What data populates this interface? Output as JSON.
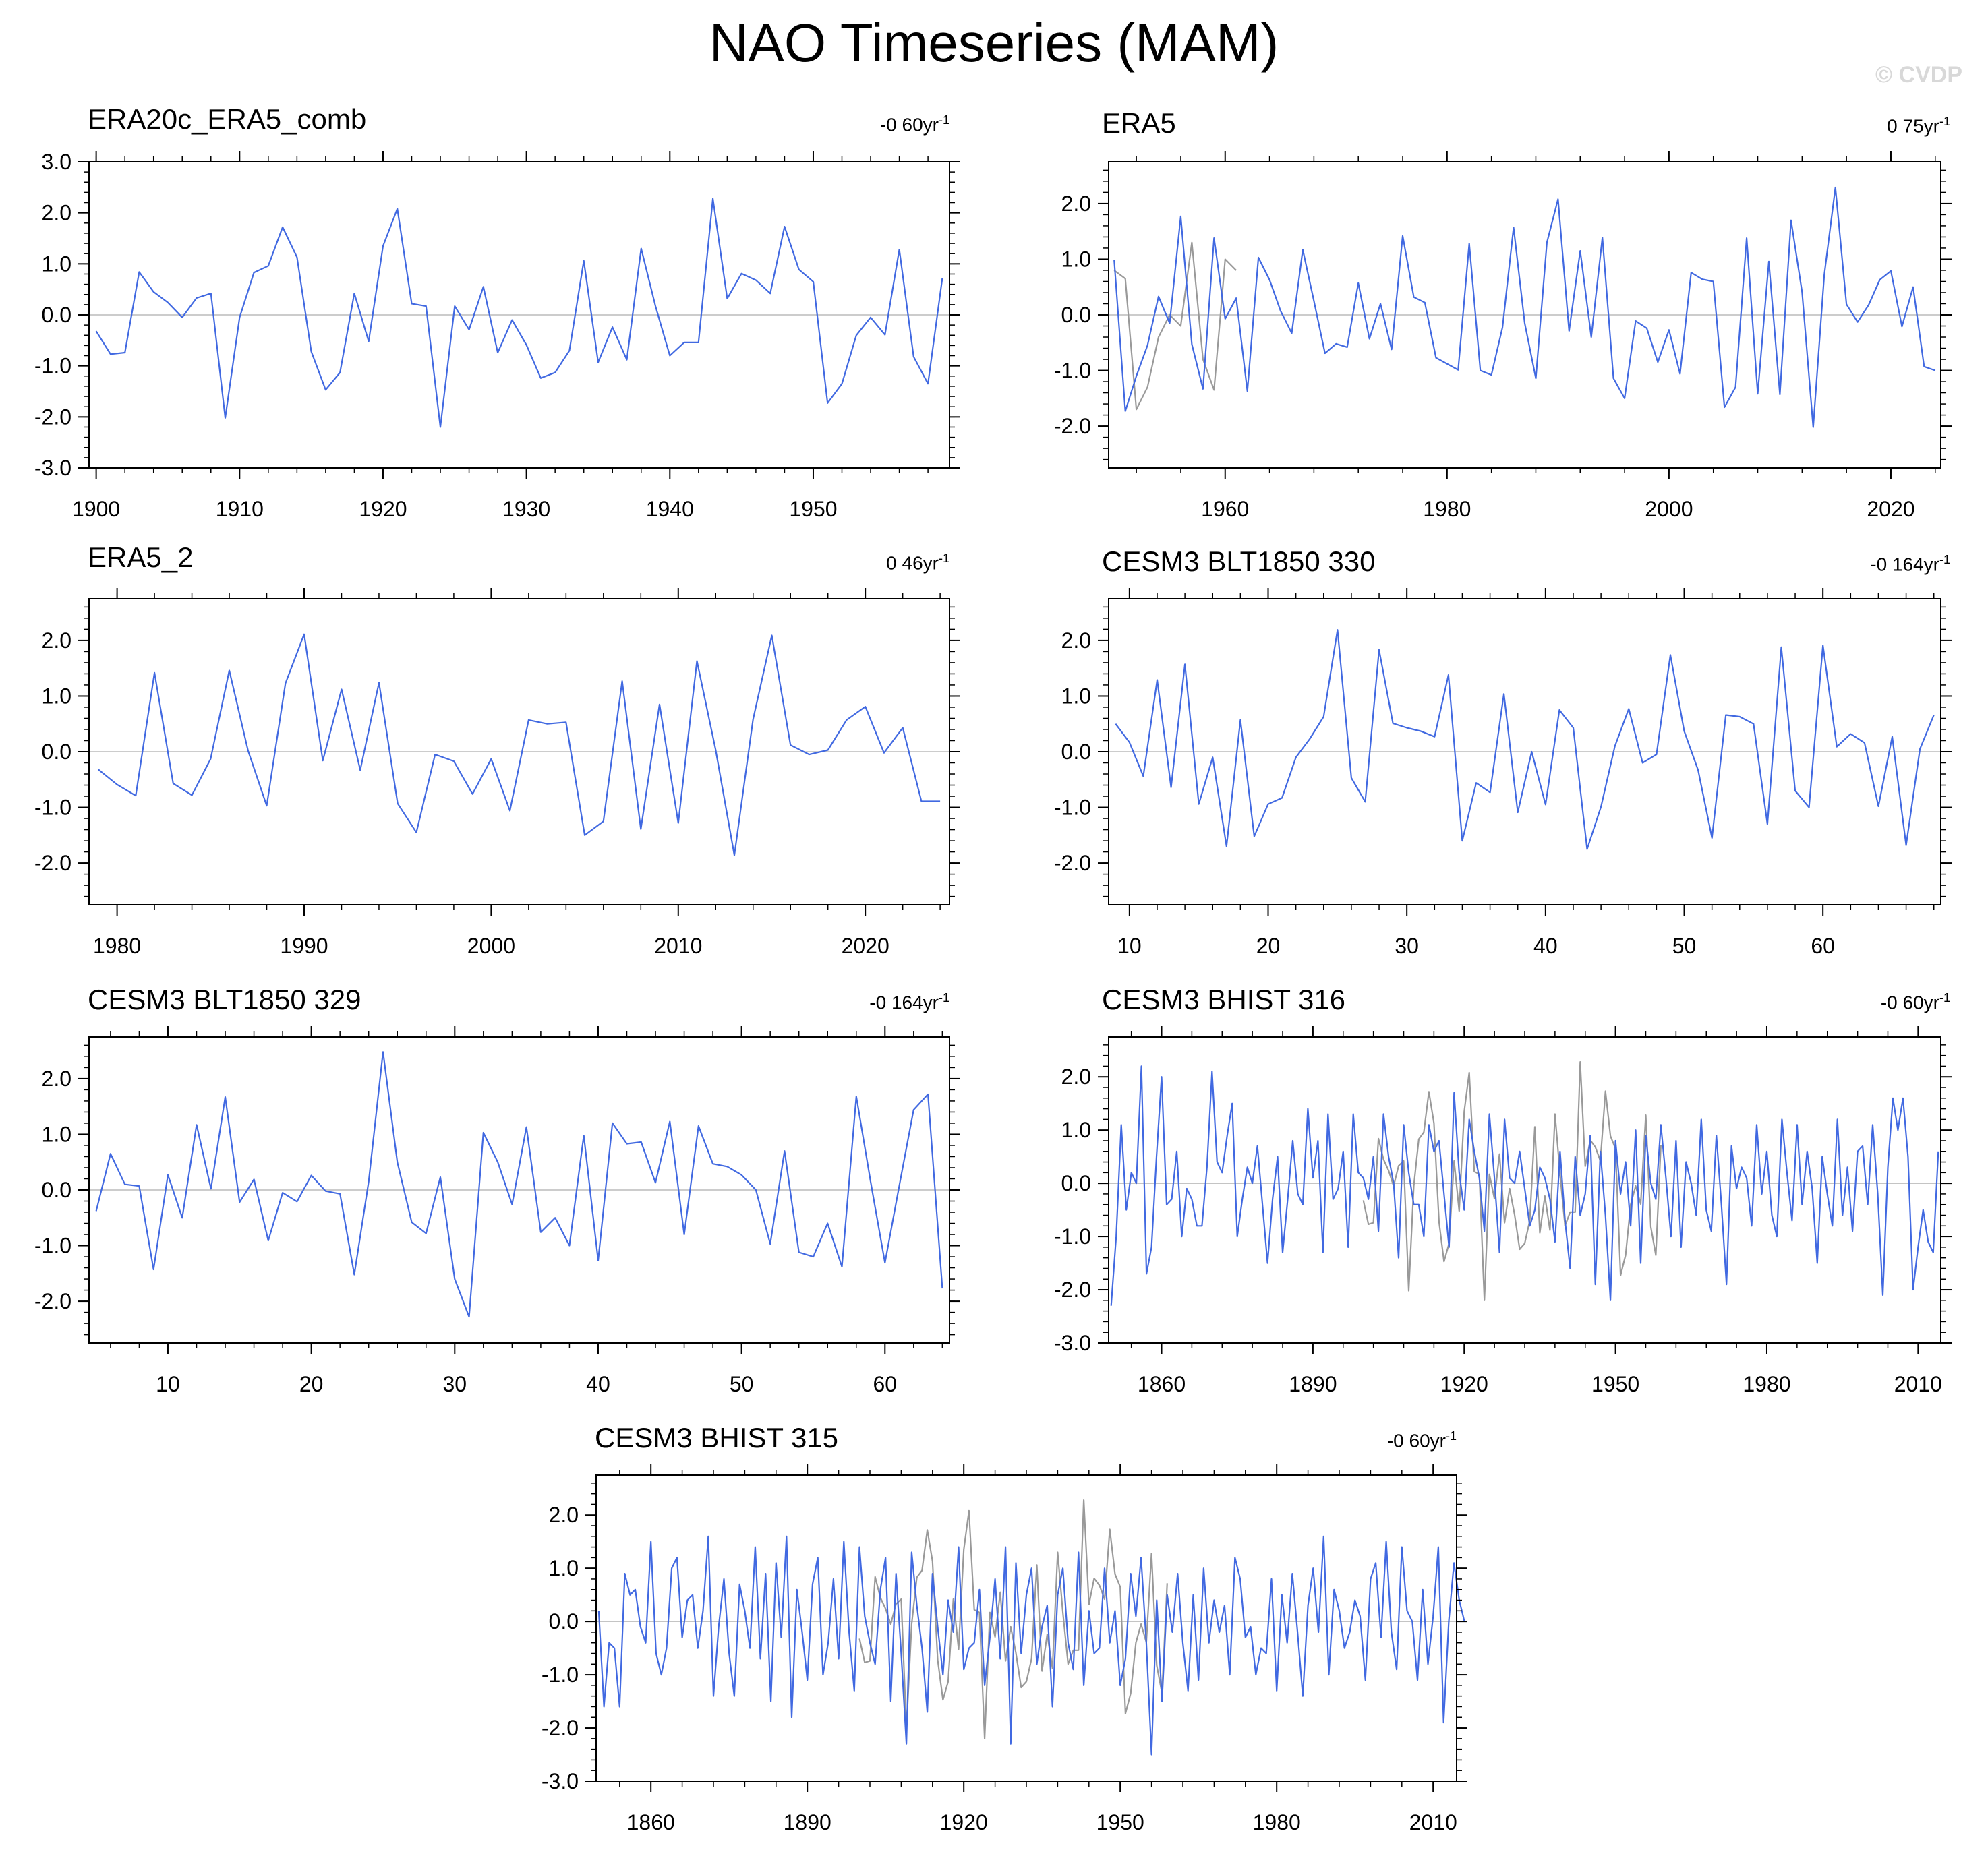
{
  "title": "NAO Timeseries (MAM)",
  "watermark": "© CVDP",
  "colors": {
    "series": "#4169e1",
    "obs": "#999999",
    "axis": "#000000",
    "zero": "#bbbbbb"
  },
  "chart_data": [
    {
      "type": "line",
      "title": "ERA20c_ERA5_comb",
      "trend_value": "-0 60yr",
      "trend_exp": "-1",
      "xlim": [
        1899.5,
        1959.5
      ],
      "ylim": [
        -3,
        3
      ],
      "yticks": [
        -3,
        -2,
        -1,
        0,
        1,
        2,
        3
      ],
      "ytick_labels": [
        "-3.0",
        "-2.0",
        "-1.0",
        "0.0",
        "1.0",
        "2.0",
        "3.0"
      ],
      "xticks": [
        1900,
        1910,
        1920,
        1930,
        1940,
        1950
      ],
      "xtick_labels": [
        "1900",
        "1910",
        "1920",
        "1930",
        "1940",
        "1950"
      ],
      "series": [
        {
          "x_start": 1900,
          "values": [
            -0.32,
            -0.77,
            -0.74,
            0.84,
            0.45,
            0.24,
            -0.05,
            0.33,
            0.42,
            -2.02,
            -0.05,
            0.83,
            0.96,
            1.72,
            1.13,
            -0.72,
            -1.47,
            -1.13,
            0.42,
            -0.52,
            1.35,
            2.08,
            0.22,
            0.17,
            -2.2,
            0.17,
            -0.29,
            0.55,
            -0.74,
            -0.1,
            -0.59,
            -1.24,
            -1.13,
            -0.7,
            1.06,
            -0.93,
            -0.24,
            -0.88,
            1.3,
            0.17,
            -0.8,
            -0.54,
            -0.54,
            2.28,
            0.32,
            0.81,
            0.68,
            0.42,
            1.73,
            0.89,
            0.65,
            -1.73,
            -1.35,
            -0.4,
            -0.05,
            -0.39,
            1.28,
            -0.82,
            -1.35,
            0.72
          ]
        }
      ]
    },
    {
      "type": "line",
      "title": "ERA5",
      "trend_value": "0 75yr",
      "trend_exp": "-1",
      "xlim": [
        1949.5,
        2024.5
      ],
      "ylim": [
        -2.75,
        2.75
      ],
      "yticks": [
        -2,
        -1,
        0,
        1,
        2
      ],
      "ytick_labels": [
        "-2.0",
        "-1.0",
        "0.0",
        "1.0",
        "2.0"
      ],
      "xticks": [
        1960,
        1980,
        2000,
        2020
      ],
      "xtick_labels": [
        "1960",
        "1980",
        "2000",
        "2020"
      ],
      "series": [
        {
          "name": "obs",
          "x_start": 1950,
          "values": [
            0.8,
            0.65,
            -1.7,
            -1.3,
            -0.4,
            0.0,
            -0.2,
            1.3,
            -0.8,
            -1.35,
            1.0,
            0.8
          ]
        },
        {
          "x_start": 1950,
          "values": [
            0.99,
            -1.73,
            -1.1,
            -0.55,
            0.33,
            -0.15,
            1.77,
            -0.53,
            -1.33,
            1.38,
            -0.07,
            0.3,
            -1.37,
            1.03,
            0.63,
            0.07,
            -0.33,
            1.17,
            0.25,
            -0.69,
            -0.52,
            -0.58,
            0.57,
            -0.43,
            0.2,
            -0.62,
            1.42,
            0.32,
            0.22,
            -0.77,
            -0.88,
            -0.99,
            1.28,
            -1.0,
            -1.08,
            -0.22,
            1.57,
            -0.15,
            -1.14,
            1.3,
            2.08,
            -0.29,
            1.15,
            -0.4,
            1.39,
            -1.14,
            -1.5,
            -0.11,
            -0.24,
            -0.85,
            -0.27,
            -1.06,
            0.76,
            0.64,
            0.6,
            -1.66,
            -1.3,
            1.38,
            -1.42,
            0.96,
            -1.43,
            1.7,
            0.41,
            -2.02,
            0.72,
            2.29,
            0.19,
            -0.13,
            0.18,
            0.63,
            0.79,
            -0.21,
            0.5,
            -0.93,
            -1.0
          ]
        }
      ]
    },
    {
      "type": "line",
      "title": "ERA5_2",
      "trend_value": "0 46yr",
      "trend_exp": "-1",
      "xlim": [
        1978.5,
        2024.5
      ],
      "ylim": [
        -2.75,
        2.75
      ],
      "yticks": [
        -2,
        -1,
        0,
        1,
        2
      ],
      "ytick_labels": [
        "-2.0",
        "-1.0",
        "0.0",
        "1.0",
        "2.0"
      ],
      "xticks": [
        1980,
        1990,
        2000,
        2010,
        2020
      ],
      "xtick_labels": [
        "1980",
        "1990",
        "2000",
        "2010",
        "2020"
      ],
      "series": [
        {
          "x_start": 1979,
          "values": [
            -0.32,
            -0.59,
            -0.79,
            1.42,
            -0.57,
            -0.78,
            -0.13,
            1.46,
            0.02,
            -0.97,
            1.23,
            2.11,
            -0.16,
            1.12,
            -0.33,
            1.24,
            -0.93,
            -1.45,
            -0.05,
            -0.17,
            -0.76,
            -0.13,
            -1.06,
            0.57,
            0.5,
            0.53,
            -1.5,
            -1.25,
            1.27,
            -1.39,
            0.85,
            -1.28,
            1.63,
            0.03,
            -1.86,
            0.58,
            2.09,
            0.12,
            -0.05,
            0.03,
            0.57,
            0.81,
            -0.02,
            0.43,
            -0.89,
            -0.89
          ]
        }
      ]
    },
    {
      "type": "line",
      "title": "CESM3 BLT1850 330",
      "trend_value": "-0 164yr",
      "trend_exp": "-1",
      "xlim": [
        8.5,
        68.5
      ],
      "ylim": [
        -2.75,
        2.75
      ],
      "yticks": [
        -2,
        -1,
        0,
        1,
        2
      ],
      "ytick_labels": [
        "-2.0",
        "-1.0",
        "0.0",
        "1.0",
        "2.0"
      ],
      "xticks": [
        10,
        20,
        30,
        40,
        50,
        60
      ],
      "xtick_labels": [
        "10",
        "20",
        "30",
        "40",
        "50",
        "60"
      ],
      "series": [
        {
          "x_start": 9,
          "values": [
            0.5,
            0.17,
            -0.44,
            1.29,
            -0.64,
            1.57,
            -0.94,
            -0.1,
            -1.7,
            0.57,
            -1.52,
            -0.94,
            -0.83,
            -0.1,
            0.23,
            0.63,
            2.19,
            -0.47,
            -0.9,
            1.83,
            0.51,
            0.43,
            0.37,
            0.27,
            1.38,
            -1.6,
            -0.56,
            -0.73,
            1.04,
            -1.09,
            0.0,
            -0.95,
            0.75,
            0.43,
            -1.75,
            -0.99,
            0.1,
            0.77,
            -0.2,
            -0.05,
            1.74,
            0.37,
            -0.33,
            -1.55,
            0.66,
            0.63,
            0.5,
            -1.3,
            1.88,
            -0.7,
            -1.0,
            1.91,
            0.09,
            0.32,
            0.16,
            -0.98,
            0.27,
            -1.68,
            0.05,
            0.66
          ]
        }
      ]
    },
    {
      "type": "line",
      "title": "CESM3 BLT1850 329",
      "trend_value": "-0 164yr",
      "trend_exp": "-1",
      "xlim": [
        4.5,
        64.5
      ],
      "ylim": [
        -2.75,
        2.75
      ],
      "yticks": [
        -2,
        -1,
        0,
        1,
        2
      ],
      "ytick_labels": [
        "-2.0",
        "-1.0",
        "0.0",
        "1.0",
        "2.0"
      ],
      "xticks": [
        10,
        20,
        30,
        40,
        50,
        60
      ],
      "xtick_labels": [
        "10",
        "20",
        "30",
        "40",
        "50",
        "60"
      ],
      "series": [
        {
          "x_start": 5,
          "values": [
            -0.38,
            0.65,
            0.1,
            0.07,
            -1.43,
            0.27,
            -0.5,
            1.17,
            0.02,
            1.67,
            -0.22,
            0.19,
            -0.91,
            -0.05,
            -0.21,
            0.26,
            -0.02,
            -0.07,
            -1.52,
            0.15,
            2.48,
            0.5,
            -0.58,
            -0.78,
            0.23,
            -1.6,
            -2.28,
            1.03,
            0.5,
            -0.26,
            1.13,
            -0.76,
            -0.5,
            -1.0,
            0.98,
            -1.27,
            1.2,
            0.83,
            0.86,
            0.13,
            1.23,
            -0.8,
            1.15,
            0.47,
            0.42,
            0.27,
            0.0,
            -0.97,
            0.7,
            -1.12,
            -1.2,
            -0.6,
            -1.38,
            1.68,
            0.15,
            -1.31,
            0.08,
            1.44,
            1.72,
            -1.77
          ]
        }
      ]
    },
    {
      "type": "line",
      "title": "CESM3 BHIST 316",
      "trend_value": "-0 60yr",
      "trend_exp": "-1",
      "xlim": [
        1849.5,
        2014.5
      ],
      "ylim": [
        -3,
        2.75
      ],
      "yticks": [
        -3,
        -2,
        -1,
        0,
        1,
        2
      ],
      "ytick_labels": [
        "-3.0",
        "-2.0",
        "-1.0",
        "0.0",
        "1.0",
        "2.0"
      ],
      "xticks": [
        1860,
        1890,
        1920,
        1950,
        1980,
        2010
      ],
      "xtick_labels": [
        "1860",
        "1890",
        "1920",
        "1950",
        "1980",
        "2010"
      ],
      "series": [
        {
          "name": "obs",
          "x_start": 1900,
          "values": [
            -0.32,
            -0.77,
            -0.74,
            0.84,
            0.45,
            0.24,
            -0.05,
            0.33,
            0.42,
            -2.02,
            -0.05,
            0.83,
            0.96,
            1.72,
            1.13,
            -0.72,
            -1.47,
            -1.13,
            0.42,
            -0.52,
            1.35,
            2.08,
            0.22,
            0.17,
            -2.2,
            0.17,
            -0.29,
            0.55,
            -0.74,
            -0.1,
            -0.59,
            -1.24,
            -1.13,
            -0.7,
            1.06,
            -0.93,
            -0.24,
            -0.88,
            1.3,
            0.17,
            -0.8,
            -0.54,
            -0.54,
            2.28,
            0.32,
            0.81,
            0.68,
            0.42,
            1.73,
            0.89,
            0.65,
            -1.73,
            -1.35,
            -0.4,
            -0.05,
            -0.39,
            1.28,
            -0.82,
            -1.35,
            0.72
          ]
        },
        {
          "x_start": 1850,
          "values": [
            -2.3,
            -1.0,
            1.1,
            -0.5,
            0.2,
            0.0,
            2.2,
            -1.7,
            -1.2,
            0.5,
            2.0,
            -0.4,
            -0.3,
            0.6,
            -1.0,
            -0.1,
            -0.3,
            -0.8,
            -0.8,
            0.3,
            2.1,
            0.4,
            0.2,
            0.9,
            1.5,
            -1.0,
            -0.3,
            0.3,
            0.0,
            0.7,
            -0.4,
            -1.5,
            -0.3,
            0.5,
            -1.3,
            -0.3,
            0.8,
            -0.2,
            -0.4,
            1.4,
            0.1,
            0.8,
            -1.3,
            1.3,
            -0.3,
            -0.1,
            0.6,
            -1.2,
            1.3,
            0.2,
            0.1,
            -0.3,
            0.5,
            -0.9,
            1.3,
            0.5,
            0.0,
            -1.4,
            1.1,
            0.2,
            -0.4,
            -0.4,
            -1.0,
            1.1,
            0.6,
            0.8,
            -0.2,
            -1.2,
            1.7,
            0.2,
            -0.5,
            1.2,
            0.6,
            0.1,
            -0.9,
            1.3,
            0.1,
            -1.3,
            1.2,
            0.1,
            0.0,
            0.6,
            -0.1,
            -0.8,
            -0.5,
            0.3,
            0.1,
            -0.3,
            -1.1,
            0.6,
            -0.7,
            -1.6,
            0.5,
            -0.6,
            -0.2,
            0.9,
            -1.9,
            0.6,
            -0.6,
            -2.2,
            0.8,
            -0.2,
            0.4,
            -0.8,
            1.0,
            -1.5,
            0.9,
            0.0,
            -0.3,
            1.1,
            0.1,
            -1.0,
            0.8,
            -1.2,
            0.4,
            0.0,
            -0.6,
            1.2,
            -0.5,
            -0.9,
            0.9,
            -0.4,
            -1.9,
            0.7,
            -0.1,
            0.3,
            0.1,
            -0.8,
            1.1,
            -0.2,
            0.6,
            -0.6,
            -1.0,
            1.2,
            0.2,
            -0.7,
            1.1,
            -0.4,
            0.6,
            -0.1,
            -1.5,
            0.5,
            -0.2,
            -0.8,
            1.2,
            -0.6,
            0.3,
            -0.9,
            0.6,
            0.7,
            -0.4,
            1.1,
            -0.2,
            -2.1,
            0.3,
            1.6,
            1.0,
            1.6,
            0.5,
            -2.0,
            -1.2,
            -0.5,
            -1.1,
            -1.3,
            0.6
          ]
        }
      ]
    },
    {
      "type": "line",
      "title": "CESM3 BHIST 315",
      "trend_value": "-0 60yr",
      "trend_exp": "-1",
      "xlim": [
        1849.5,
        2014.5
      ],
      "ylim": [
        -3,
        2.75
      ],
      "yticks": [
        -3,
        -2,
        -1,
        0,
        1,
        2
      ],
      "ytick_labels": [
        "-3.0",
        "-2.0",
        "-1.0",
        "0.0",
        "1.0",
        "2.0"
      ],
      "xticks": [
        1860,
        1890,
        1920,
        1950,
        1980,
        2010
      ],
      "xtick_labels": [
        "1860",
        "1890",
        "1920",
        "1950",
        "1980",
        "2010"
      ],
      "series": [
        {
          "name": "obs",
          "x_start": 1900,
          "values": [
            -0.32,
            -0.77,
            -0.74,
            0.84,
            0.45,
            0.24,
            -0.05,
            0.33,
            0.42,
            -2.02,
            -0.05,
            0.83,
            0.96,
            1.72,
            1.13,
            -0.72,
            -1.47,
            -1.13,
            0.42,
            -0.52,
            1.35,
            2.08,
            0.22,
            0.17,
            -2.2,
            0.17,
            -0.29,
            0.55,
            -0.74,
            -0.1,
            -0.59,
            -1.24,
            -1.13,
            -0.7,
            1.06,
            -0.93,
            -0.24,
            -0.88,
            1.3,
            0.17,
            -0.8,
            -0.54,
            -0.54,
            2.28,
            0.32,
            0.81,
            0.68,
            0.42,
            1.73,
            0.89,
            0.65,
            -1.73,
            -1.35,
            -0.4,
            -0.05,
            -0.39,
            1.28,
            -0.82,
            -1.35,
            0.72
          ]
        },
        {
          "x_start": 1850,
          "values": [
            0.2,
            -1.6,
            -0.4,
            -0.5,
            -1.6,
            0.9,
            0.5,
            0.6,
            -0.1,
            -0.4,
            1.5,
            -0.6,
            -1.0,
            -0.5,
            1.0,
            1.2,
            -0.3,
            0.4,
            0.5,
            -0.5,
            0.2,
            1.6,
            -1.4,
            -0.1,
            0.8,
            -0.6,
            -1.4,
            0.7,
            0.2,
            -0.5,
            1.4,
            -0.7,
            0.9,
            -1.5,
            1.1,
            -0.3,
            1.6,
            -1.8,
            0.6,
            -0.2,
            -1.1,
            0.7,
            1.2,
            -1.0,
            -0.4,
            0.8,
            -0.7,
            1.5,
            -0.2,
            -1.3,
            1.4,
            0.1,
            -0.4,
            -0.8,
            0.6,
            1.2,
            -1.5,
            0.9,
            -0.6,
            -2.3,
            1.3,
            0.3,
            -0.5,
            -1.7,
            0.9,
            -0.1,
            -1.0,
            0.4,
            -0.2,
            1.4,
            -0.9,
            -0.5,
            -0.4,
            0.6,
            -1.2,
            -0.3,
            0.8,
            -0.7,
            1.4,
            -2.3,
            1.1,
            -0.6,
            0.5,
            1.0,
            -0.8,
            -0.1,
            0.3,
            -1.6,
            0.5,
            1.0,
            -0.4,
            -0.9,
            1.3,
            -1.2,
            0.2,
            -0.6,
            -0.5,
            1.0,
            -0.4,
            0.2,
            -1.2,
            -0.7,
            0.9,
            0.1,
            1.2,
            -0.4,
            -2.5,
            0.4,
            -1.5,
            0.5,
            -0.2,
            0.9,
            -0.4,
            -1.3,
            0.5,
            -1.1,
            1.0,
            -0.4,
            0.4,
            -0.2,
            0.3,
            -1.0,
            1.2,
            0.8,
            -0.3,
            -0.1,
            -1.0,
            -0.5,
            -0.6,
            0.8,
            -1.3,
            0.5,
            -0.4,
            0.9,
            -0.2,
            -1.4,
            0.3,
            1.0,
            -0.2,
            1.6,
            -1.0,
            0.6,
            0.2,
            -0.5,
            -0.2,
            0.4,
            0.1,
            -1.1,
            0.8,
            1.1,
            -0.3,
            1.5,
            -0.2,
            -0.9,
            1.4,
            0.2,
            0.0,
            -1.1,
            0.6,
            -0.8,
            0.1,
            1.4,
            -1.9,
            0.0,
            1.1,
            0.4,
            0.0
          ]
        }
      ]
    }
  ]
}
